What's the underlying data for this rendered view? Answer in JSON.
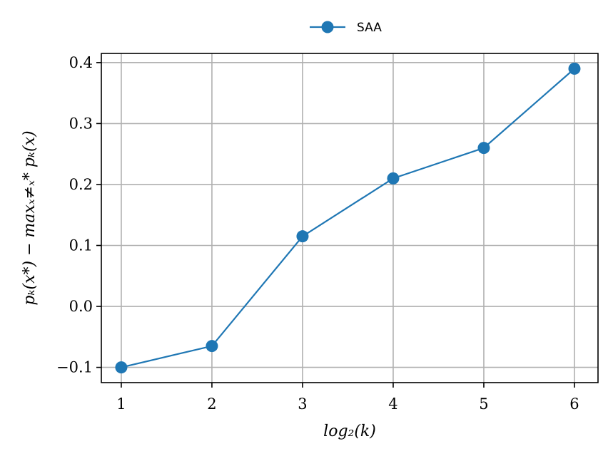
{
  "chart_data": {
    "type": "line",
    "title": "",
    "xlabel": "log₂(k)",
    "ylabel": "pₖ(x*) − maxₓ≠ₓ* pₖ(x)",
    "x": [
      1,
      2,
      3,
      4,
      5,
      6
    ],
    "series": [
      {
        "name": "SAA",
        "values": [
          -0.1,
          -0.065,
          0.115,
          0.21,
          0.26,
          0.39
        ],
        "color": "#1f77b4"
      }
    ],
    "xlim": [
      0.78,
      6.26
    ],
    "ylim": [
      -0.125,
      0.415
    ],
    "xticks": [
      1,
      2,
      3,
      4,
      5,
      6
    ],
    "xtick_labels": [
      "1",
      "2",
      "3",
      "4",
      "5",
      "6"
    ],
    "yticks": [
      -0.1,
      0.0,
      0.1,
      0.2,
      0.3,
      0.4
    ],
    "ytick_labels": [
      "−0.1",
      "0.0",
      "0.1",
      "0.2",
      "0.3",
      "0.4"
    ],
    "grid": true,
    "legend_position": "top-center"
  }
}
